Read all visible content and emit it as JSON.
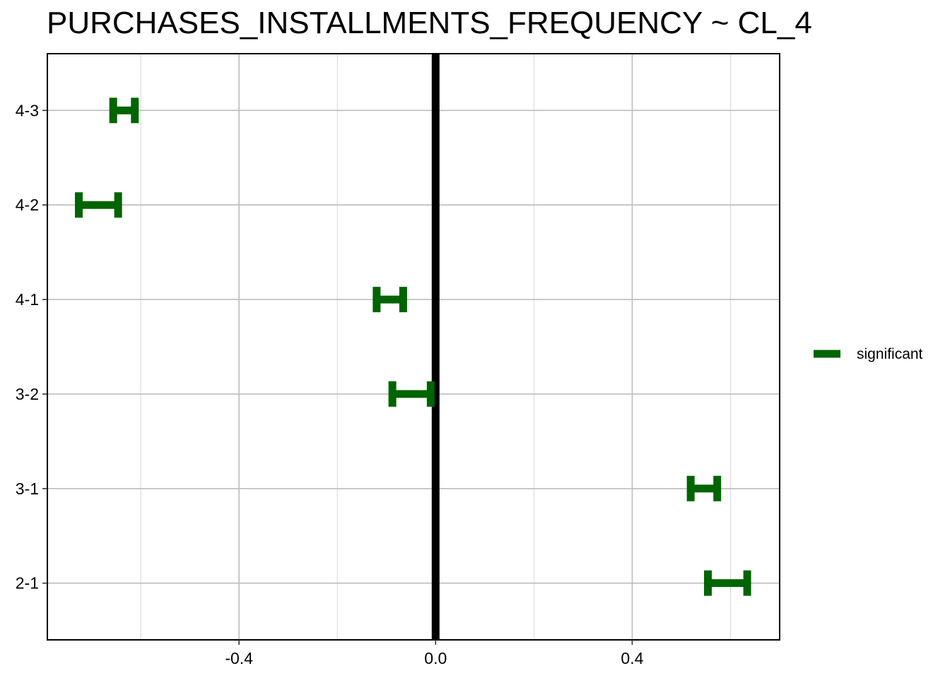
{
  "chart_data": {
    "type": "errorbar",
    "title": "PURCHASES_INSTALLMENTS_FREQUENCY  ~ CL_4",
    "xlabel": "",
    "ylabel": "",
    "xlim": [
      -0.79,
      0.7
    ],
    "x_ticks": [
      -0.4,
      0.0,
      0.4
    ],
    "x_tick_labels": [
      "-0.4",
      "0.0",
      "0.4"
    ],
    "x_minor_ticks": [
      -0.6,
      -0.2,
      0.2,
      0.6
    ],
    "categories": [
      "4-3",
      "4-2",
      "4-1",
      "3-2",
      "3-1",
      "2-1"
    ],
    "reference_line": 0.0,
    "grid": true,
    "legend_position": "right",
    "series": [
      {
        "name": "significant",
        "color": "#006400",
        "intervals": [
          {
            "category": "4-3",
            "lower": -0.656,
            "upper": -0.612
          },
          {
            "category": "4-2",
            "lower": -0.726,
            "upper": -0.646
          },
          {
            "category": "4-1",
            "lower": -0.12,
            "upper": -0.066
          },
          {
            "category": "3-2",
            "lower": -0.088,
            "upper": -0.01
          },
          {
            "category": "3-1",
            "lower": 0.519,
            "upper": 0.573
          },
          {
            "category": "2-1",
            "lower": 0.554,
            "upper": 0.634
          }
        ]
      }
    ]
  }
}
